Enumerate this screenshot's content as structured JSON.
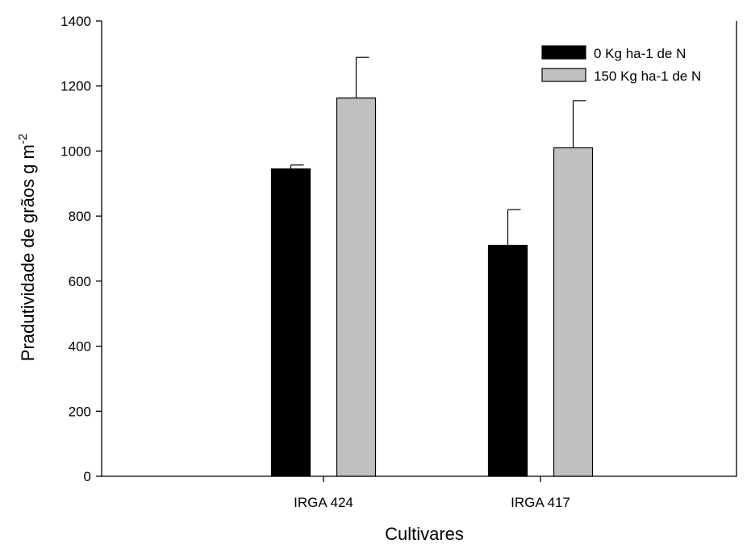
{
  "chart_data": {
    "type": "bar",
    "title": "",
    "xlabel": "Cultivares",
    "ylabel": "Pradutividade de grãos g m",
    "ylabel_superscript": "-2",
    "ylim": [
      0,
      1400
    ],
    "yticks": [
      0,
      200,
      400,
      600,
      800,
      1000,
      1200,
      1400
    ],
    "grid": false,
    "legend_position": "top-right",
    "categories": [
      "IRGA 424",
      "IRGA 417"
    ],
    "series": [
      {
        "name": "0 Kg ha-1 de N",
        "color": "#000000",
        "values": [
          945,
          710
        ],
        "errors": [
          12,
          110
        ]
      },
      {
        "name": "150 Kg ha-1 de N",
        "color": "#c0c0c0",
        "values": [
          1163,
          1010
        ],
        "errors": [
          125,
          145
        ]
      }
    ]
  }
}
